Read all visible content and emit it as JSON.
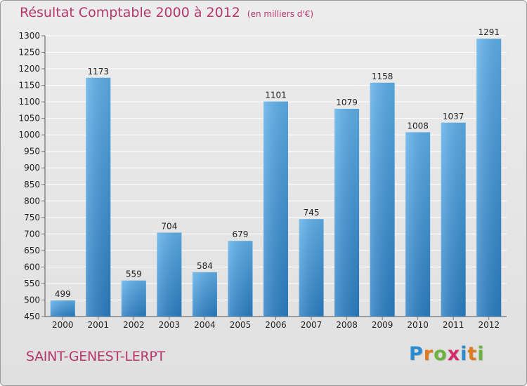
{
  "header": {
    "title": "Résultat Comptable 2000 à 2012",
    "unit": "(en milliers d'€)"
  },
  "footer": {
    "city": "SAINT-GENEST-LERPT",
    "logo": [
      "P",
      "r",
      "o",
      "x",
      "i",
      "t",
      "i"
    ],
    "logo_colors": [
      "#2a8bd0",
      "#e07a1c",
      "#6cb33e",
      "#d42a6a",
      "#2a8bd0",
      "#e07a1c",
      "#6cb33e"
    ]
  },
  "colors": {
    "bar_top": "#5eb0ea",
    "bar_bottom": "#2b7fc4",
    "title": "#b5386a",
    "text": "#222222",
    "grid": "#ffffff"
  },
  "chart_data": {
    "type": "bar",
    "title": "Résultat Comptable 2000 à 2012",
    "categories": [
      "2000",
      "2001",
      "2002",
      "2003",
      "2004",
      "2005",
      "2006",
      "2007",
      "2008",
      "2009",
      "2010",
      "2011",
      "2012"
    ],
    "values": [
      499,
      1173,
      559,
      704,
      584,
      679,
      1101,
      745,
      1079,
      1158,
      1008,
      1037,
      1291
    ],
    "xlabel": "",
    "ylabel": "",
    "ylim": [
      450,
      1300
    ],
    "yticks": [
      450,
      500,
      550,
      600,
      650,
      700,
      750,
      800,
      850,
      900,
      950,
      1000,
      1050,
      1100,
      1150,
      1200,
      1250,
      1300
    ],
    "grid": true,
    "data_labels": true
  }
}
